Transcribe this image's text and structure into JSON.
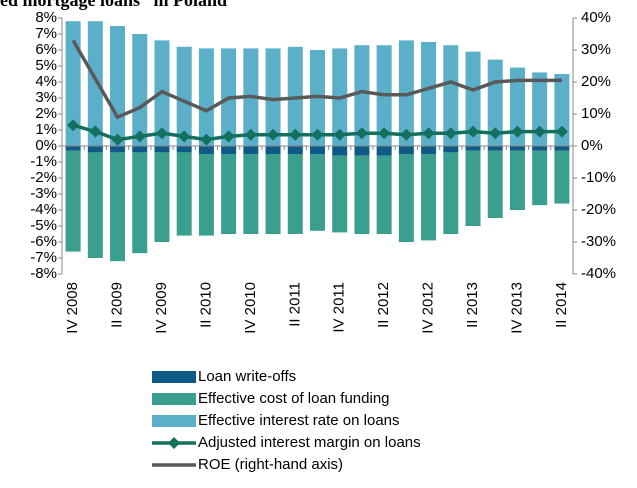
{
  "chart_data": {
    "type": "bar",
    "title": "ed mortgage loans” in Poland",
    "categories": [
      "IV 2008",
      null,
      "II 2009",
      null,
      "IV 2009",
      null,
      "II 2010",
      null,
      "IV 2010",
      null,
      "II 2011",
      null,
      "IV 2011",
      null,
      "II 2012",
      null,
      "IV 2012",
      null,
      "II 2013",
      null,
      "IV 2013",
      null,
      "II 2014"
    ],
    "series": [
      {
        "name": "Loan write-offs",
        "type": "bar",
        "color": "#0f5a86",
        "values": [
          -0.3,
          -0.4,
          -0.4,
          -0.4,
          -0.4,
          -0.4,
          -0.5,
          -0.5,
          -0.5,
          -0.5,
          -0.5,
          -0.5,
          -0.6,
          -0.6,
          -0.6,
          -0.5,
          -0.5,
          -0.4,
          -0.3,
          -0.3,
          -0.3,
          -0.3,
          -0.3
        ]
      },
      {
        "name": "Effective cost of loan funding",
        "type": "bar",
        "color": "#3a9f8e",
        "values": [
          -6.3,
          -6.6,
          -6.8,
          -6.3,
          -5.6,
          -5.2,
          -5.1,
          -5.0,
          -5.0,
          -5.0,
          -5.0,
          -4.8,
          -4.8,
          -4.9,
          -4.9,
          -5.5,
          -5.4,
          -5.1,
          -4.7,
          -4.2,
          -3.7,
          -3.4,
          -3.3
        ]
      },
      {
        "name": "Effective interest rate on loans",
        "type": "bar",
        "color": "#5bafc8",
        "values": [
          7.8,
          7.8,
          7.5,
          7.0,
          6.6,
          6.2,
          6.1,
          6.1,
          6.1,
          6.1,
          6.2,
          6.0,
          6.1,
          6.3,
          6.3,
          6.6,
          6.5,
          6.3,
          5.9,
          5.4,
          4.9,
          4.6,
          4.5
        ]
      },
      {
        "name": "Adjusted interest margin on loans",
        "type": "line",
        "marker": "diamond",
        "color": "#13705e",
        "values": [
          1.3,
          0.9,
          0.4,
          0.6,
          0.8,
          0.6,
          0.4,
          0.6,
          0.7,
          0.7,
          0.7,
          0.7,
          0.7,
          0.8,
          0.8,
          0.7,
          0.8,
          0.8,
          0.9,
          0.8,
          0.9,
          0.9,
          0.9
        ]
      },
      {
        "name": "ROE (right-hand axis)",
        "type": "line",
        "axis": "y2",
        "color": "#595959",
        "values": [
          33,
          21,
          9,
          12,
          17,
          14,
          11,
          15,
          15.5,
          14.5,
          15,
          15.5,
          15,
          17,
          16,
          16,
          18,
          20,
          17.5,
          20,
          20.5,
          20.5,
          20.5
        ]
      }
    ],
    "ylim": [
      -8,
      8
    ],
    "yticks": [
      {
        "value": -8,
        "label": "-8%"
      },
      {
        "value": -7,
        "label": "-7%"
      },
      {
        "value": -6,
        "label": "-6%"
      },
      {
        "value": -5,
        "label": "-5%"
      },
      {
        "value": -4,
        "label": "-4%"
      },
      {
        "value": -3,
        "label": "-3%"
      },
      {
        "value": -2,
        "label": "-2%"
      },
      {
        "value": -1,
        "label": "-1%"
      },
      {
        "value": 0,
        "label": "0%"
      },
      {
        "value": 1,
        "label": "1%"
      },
      {
        "value": 2,
        "label": "2%"
      },
      {
        "value": 3,
        "label": "3%"
      },
      {
        "value": 4,
        "label": "4%"
      },
      {
        "value": 5,
        "label": "5%"
      },
      {
        "value": 6,
        "label": "6%"
      },
      {
        "value": 7,
        "label": "7%"
      },
      {
        "value": 8,
        "label": "8%"
      }
    ],
    "y2lim": [
      -40,
      40
    ],
    "y2ticks": [
      {
        "value": -40,
        "label": "-40%"
      },
      {
        "value": -30,
        "label": "-30%"
      },
      {
        "value": -20,
        "label": "-20%"
      },
      {
        "value": -10,
        "label": "-10%"
      },
      {
        "value": 0,
        "label": "0%"
      },
      {
        "value": 10,
        "label": "10%"
      },
      {
        "value": 20,
        "label": "20%"
      },
      {
        "value": 30,
        "label": "30%"
      },
      {
        "value": 40,
        "label": "40%"
      }
    ],
    "grid": false,
    "legend": "bottom"
  }
}
